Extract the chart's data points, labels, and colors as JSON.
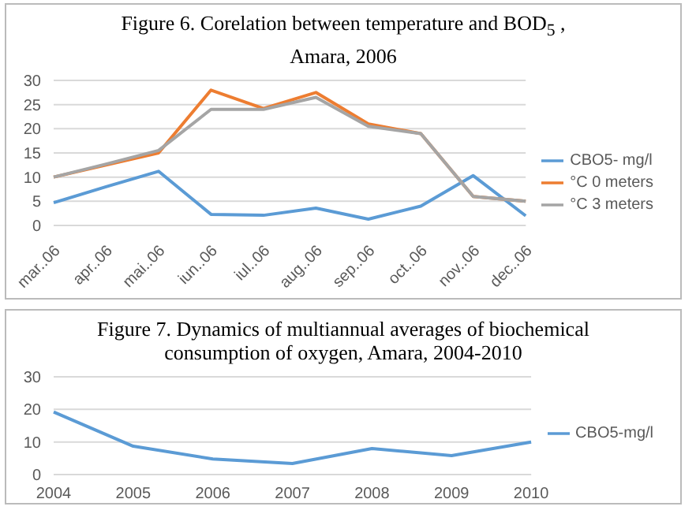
{
  "chart_data": [
    {
      "type": "line",
      "title": "Figure 6. Corelation between temperature and BOD$_{5}$ , Amara, 2006",
      "categories": [
        "mar..06",
        "apr..06",
        "mai..06",
        "iun..06",
        "iul..06",
        "aug..06",
        "sep..06",
        "oct..06",
        "nov..06",
        "dec..06"
      ],
      "series": [
        {
          "name": "CBO5- mg/l",
          "color": "#5b9bd5",
          "values": [
            4.7,
            8,
            11.2,
            2.3,
            2.1,
            3.6,
            1.3,
            4,
            10.3,
            2
          ]
        },
        {
          "name": "°C 0 meters",
          "color": "#ed7d31",
          "values": [
            10,
            12.5,
            15,
            28,
            24.2,
            27.5,
            21,
            19,
            6,
            5
          ]
        },
        {
          "name": "°C 3 meters",
          "color": "#a5a5a5",
          "values": [
            10,
            12.7,
            15.5,
            24,
            24,
            26.5,
            20.5,
            19,
            6,
            5
          ]
        }
      ],
      "ylim": [
        0,
        30
      ],
      "yticks": [
        0,
        5,
        10,
        15,
        20,
        25,
        30
      ],
      "grid": "y",
      "legend": "right",
      "marker": "none",
      "line_style": "solid"
    },
    {
      "type": "line",
      "title": "Figure 7. Dynamics of multiannual averages of biochemical consumption of oxygen, Amara, 2004-2010",
      "categories": [
        "2004",
        "2005",
        "2006",
        "2007",
        "2008",
        "2009",
        "2010"
      ],
      "series": [
        {
          "name": "CBO5-mg/l",
          "color": "#5b9bd5",
          "values": [
            19.2,
            8.7,
            4.8,
            3.4,
            8,
            5.8,
            10
          ]
        }
      ],
      "ylim": [
        0,
        30
      ],
      "yticks": [
        0,
        10,
        20,
        30
      ],
      "grid": "y",
      "legend": "right",
      "marker": "none",
      "line_style": "solid"
    }
  ]
}
